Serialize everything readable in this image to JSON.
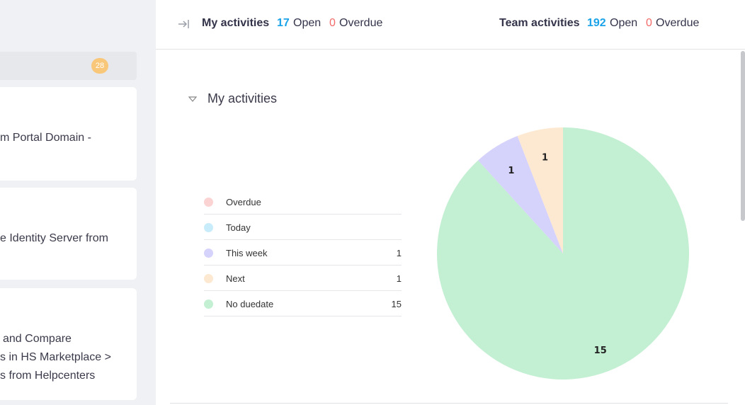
{
  "left_panel": {
    "badge": "28",
    "cards": [
      {
        "lines": [
          "m Portal Domain -"
        ]
      },
      {
        "lines": [
          "e Identity Server from"
        ]
      },
      {
        "lines": [
          "and Compare",
          "s in HS Marketplace >",
          "s from Helpcenters"
        ]
      }
    ]
  },
  "header": {
    "my": {
      "title": "My activities",
      "open_count": "17",
      "open_label": "Open",
      "overdue_count": "0",
      "overdue_label": "Overdue"
    },
    "team": {
      "title": "Team activities",
      "open_count": "192",
      "open_label": "Open",
      "overdue_count": "0",
      "overdue_label": "Overdue"
    }
  },
  "section": {
    "title": "My activities"
  },
  "legend": [
    {
      "label": "Overdue",
      "count": "",
      "color": "#fbd3d3"
    },
    {
      "label": "Today",
      "count": "",
      "color": "#c9ecfb"
    },
    {
      "label": "This week",
      "count": "1",
      "color": "#d5d2fb"
    },
    {
      "label": "Next",
      "count": "1",
      "color": "#fde9d1"
    },
    {
      "label": "No duedate",
      "count": "15",
      "color": "#c3efd2"
    }
  ],
  "chart_data": {
    "type": "pie",
    "title": "My activities",
    "categories": [
      "Overdue",
      "Today",
      "This week",
      "Next",
      "No duedate"
    ],
    "values": [
      0,
      0,
      1,
      1,
      15
    ],
    "colors": [
      "#fbd3d3",
      "#c9ecfb",
      "#d5d2fb",
      "#fde9d1",
      "#c3efd2"
    ],
    "data_labels": [
      "",
      "",
      "1",
      "1",
      "15"
    ]
  }
}
